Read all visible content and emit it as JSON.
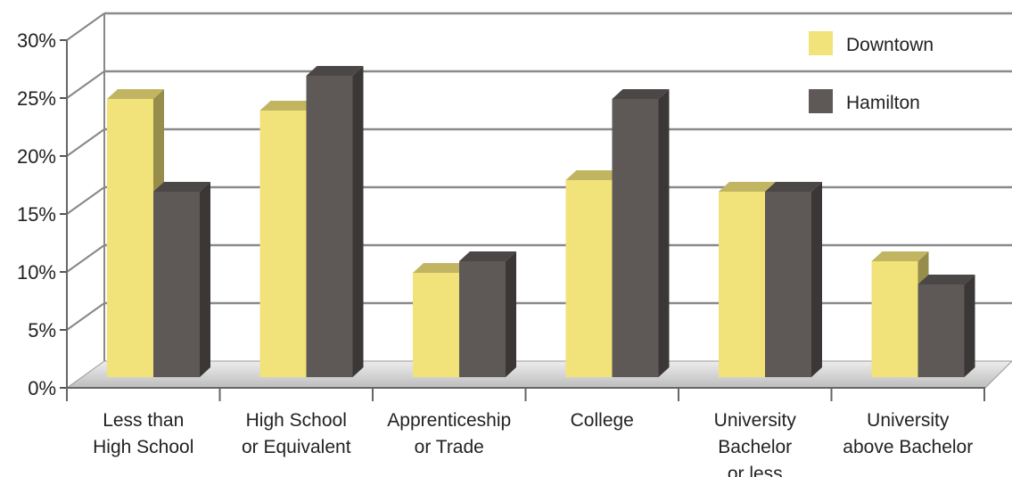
{
  "chart_data": {
    "type": "bar",
    "title": "",
    "xlabel": "",
    "ylabel": "",
    "ylim": [
      0,
      30
    ],
    "yticks": [
      "0%",
      "5%",
      "10%",
      "15%",
      "20%",
      "25%",
      "30%"
    ],
    "categories": [
      [
        "Less than",
        "High School"
      ],
      [
        "High School",
        "or Equivalent"
      ],
      [
        "Apprenticeship",
        "or Trade"
      ],
      [
        "College"
      ],
      [
        "University",
        "Bachelor",
        "or less"
      ],
      [
        "University",
        "above Bachelor"
      ]
    ],
    "series": [
      {
        "name": "Downtown",
        "color": "#f2e27a",
        "values": [
          24,
          23,
          9,
          17,
          16,
          10
        ]
      },
      {
        "name": "Hamilton",
        "color": "#5e5957",
        "values": [
          16,
          26,
          10,
          24,
          16,
          8
        ]
      }
    ],
    "legend_position": "top-right",
    "grid": true,
    "style": "3d"
  }
}
